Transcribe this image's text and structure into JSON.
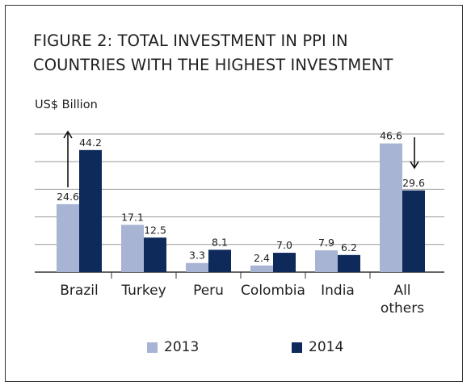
{
  "chart_data": {
    "type": "bar",
    "title": "FIGURE 2: TOTAL INVESTMENT IN PPI IN COUNTRIES WITH THE HIGHEST INVESTMENT",
    "ylabel": "US$ Billion",
    "xlabel": "",
    "categories": [
      "Brazil",
      "Turkey",
      "Peru",
      "Colombia",
      "India",
      "All others"
    ],
    "series": [
      {
        "name": "2013",
        "values": [
          24.6,
          17.1,
          3.3,
          2.4,
          7.9,
          46.6
        ],
        "color": "#a8b4d4"
      },
      {
        "name": "2014",
        "values": [
          44.2,
          12.5,
          8.1,
          7.0,
          6.2,
          29.6
        ],
        "color": "#0d2a5a"
      }
    ],
    "value_labels": {
      "2013": [
        "24.6",
        "17.1",
        "3.3",
        "2.4",
        "7.9",
        "46.6"
      ],
      "2014": [
        "44.2",
        "12.5",
        "8.1",
        "7.0",
        "6.2",
        "29.6"
      ]
    },
    "ylim": [
      0,
      50
    ],
    "yticks": [
      0,
      10,
      20,
      30,
      40,
      50
    ],
    "grid": true,
    "legend": "bottom",
    "annotations": [
      {
        "category": "Brazil",
        "direction": "up"
      },
      {
        "category": "All others",
        "direction": "down"
      }
    ]
  },
  "colors": {
    "series_2013": "#a8b4d4",
    "series_2014": "#0d2a5a",
    "grid": "#9a9a9a",
    "axis": "#333333",
    "text": "#1f1f1f"
  }
}
